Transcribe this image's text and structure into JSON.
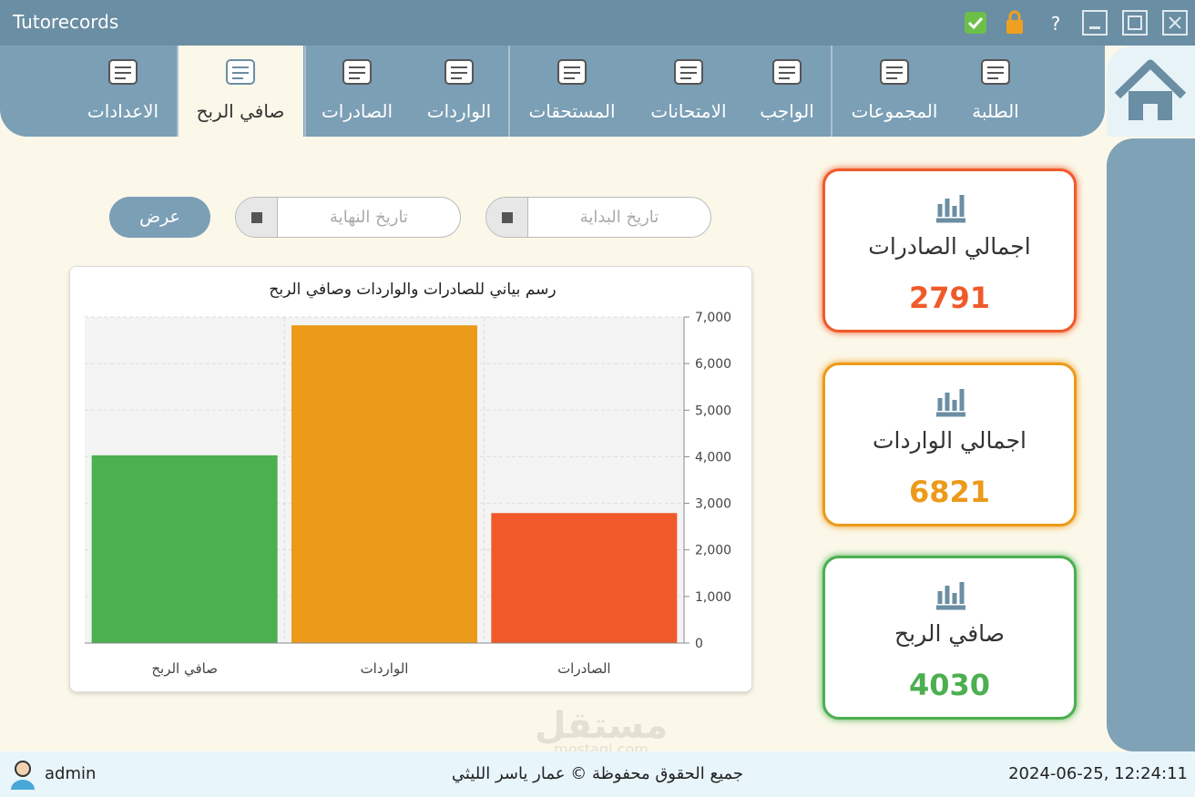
{
  "app_title": "Tutorecords",
  "window_controls": {
    "help": "?"
  },
  "nav": {
    "home": "home",
    "tabs": [
      "الطلبة",
      "المجموعات",
      "الواجب",
      "الامتحانات",
      "المستحقات",
      "الواردات",
      "الصادرات",
      "صافي الربح",
      "الاعدادات"
    ],
    "active": "صافي الربح"
  },
  "filters": {
    "start_date": "تاريخ البداية",
    "end_date": "تاريخ النهاية",
    "button": "عرض"
  },
  "cards": [
    {
      "label": "اجمالي الصادرات",
      "value": 2791,
      "color": "#f05a2a"
    },
    {
      "label": "اجمالي الواردات",
      "value": 6821,
      "color": "#ec9a1a"
    },
    {
      "label": "صافي الربح",
      "value": 4030,
      "color": "#4caf50"
    }
  ],
  "chart_data": {
    "type": "bar",
    "title": "رسم بياني للصادرات والواردات وصافي الربح",
    "categories": [
      "الصادرات",
      "الواردات",
      "صافي الربح"
    ],
    "values": [
      2791,
      6821,
      4030
    ],
    "colors": [
      "#f05a2a",
      "#ec9a1a",
      "#4caf50"
    ],
    "ylim": [
      0,
      7000
    ],
    "yticks": [
      0,
      {
        "value": 1000,
        "label": "1,000"
      },
      {
        "value": 2000,
        "label": "2,000"
      },
      {
        "value": 3000,
        "label": "3,000"
      },
      {
        "value": 4000,
        "label": "4,000"
      },
      {
        "value": 5000,
        "label": "5,000"
      },
      {
        "value": 6000,
        "label": "6,000"
      },
      {
        "value": 7000,
        "label": "7,000"
      }
    ],
    "grid": true,
    "axis_side": "right",
    "direction": "rtl"
  },
  "watermark": {
    "arabic": "مستقل",
    "latin": "mostaql.com"
  },
  "footer": {
    "user": "admin",
    "copyright": "جميع الحقوق محفوظة © عمار ياسر الليثي",
    "datetime": "2024-06-25, 12:24:11"
  }
}
